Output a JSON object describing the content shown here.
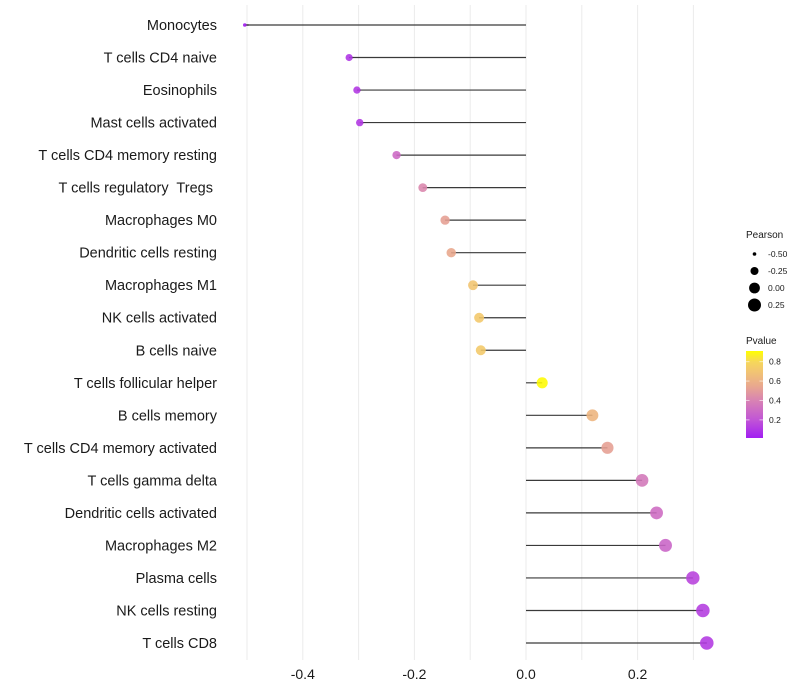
{
  "chart_data": {
    "type": "lollipop",
    "title": "",
    "xlabel": "",
    "ylabel": "",
    "xlim": [
      -0.54,
      0.34
    ],
    "x_ticks": [
      -0.4,
      -0.2,
      0.0,
      0.2
    ],
    "x_tick_labels": [
      "-0.4",
      "-0.2",
      "0.0",
      "0.2"
    ],
    "grid": true,
    "categories": [
      "Monocytes",
      "T cells CD4 naive",
      "Eosinophils",
      "Mast cells activated",
      "T cells CD4 memory resting",
      "T cells regulatory  Tregs ",
      "Macrophages M0",
      "Dendritic cells resting",
      "Macrophages M1",
      "NK cells activated",
      "B cells naive",
      "T cells follicular helper",
      "B cells memory",
      "T cells CD4 memory activated",
      "T cells gamma delta",
      "Dendritic cells activated",
      "Macrophages M2",
      "Plasma cells",
      "NK cells resting",
      "T cells CD8"
    ],
    "series": [
      {
        "name": "Pearson",
        "values": [
          -0.504,
          -0.317,
          -0.303,
          -0.298,
          -0.232,
          -0.185,
          -0.145,
          -0.134,
          -0.095,
          -0.084,
          -0.081,
          0.029,
          0.119,
          0.146,
          0.208,
          0.234,
          0.25,
          0.299,
          0.317,
          0.324
        ]
      },
      {
        "name": "Pvalue",
        "values": [
          0.02,
          0.1,
          0.11,
          0.11,
          0.3,
          0.42,
          0.52,
          0.55,
          0.7,
          0.72,
          0.73,
          0.9,
          0.62,
          0.52,
          0.36,
          0.31,
          0.28,
          0.15,
          0.13,
          0.12
        ]
      }
    ],
    "legend": {
      "placement": "right",
      "size": {
        "title": "Pearson",
        "values": [
          -0.5,
          -0.25,
          0.0,
          0.25
        ],
        "labels": [
          "-0.50",
          "-0.25",
          "0.00",
          "0.25"
        ]
      },
      "color": {
        "title": "Pvalue",
        "range": [
          0.013,
          0.91
        ],
        "ticks": [
          0.8,
          0.6,
          0.4,
          0.2
        ],
        "tick_labels": [
          "0.8",
          "0.6",
          "0.4",
          "0.2"
        ],
        "low_color": "#A020F0",
        "high_color": "#FFFF00"
      }
    }
  },
  "colors": {
    "segment": "#3a3a3a",
    "grid": "#ebebeb",
    "gradient_stops": [
      {
        "p": 0.013,
        "color": "#A21EF2"
      },
      {
        "p": 0.2,
        "color": "#C155D6"
      },
      {
        "p": 0.4,
        "color": "#D883B3"
      },
      {
        "p": 0.55,
        "color": "#E9A88E"
      },
      {
        "p": 0.7,
        "color": "#F2C572"
      },
      {
        "p": 0.8,
        "color": "#F6D75A"
      },
      {
        "p": 0.91,
        "color": "#FFFF00"
      }
    ]
  }
}
